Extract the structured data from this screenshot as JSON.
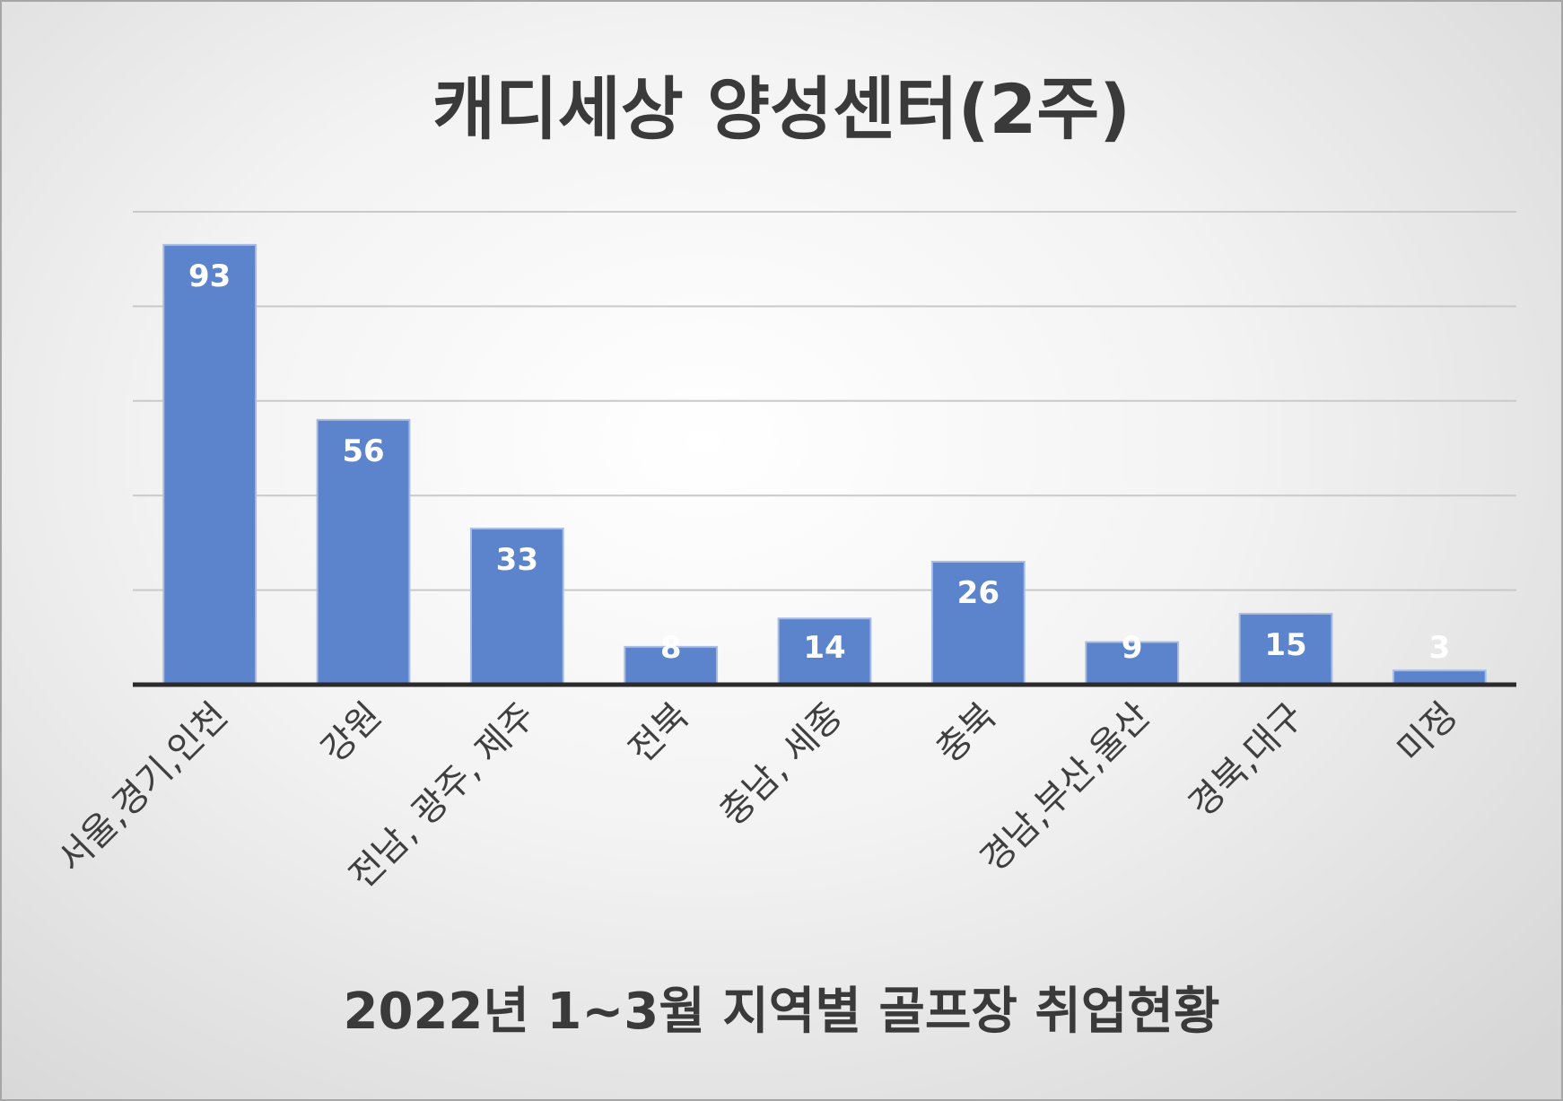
{
  "chart_data": {
    "type": "bar",
    "title": "캐디세상 양성센터(2주)",
    "xlabel": "2022년 1~3월 지역별 골프장 취업현황",
    "ylabel": "",
    "categories": [
      "서울,경기,인천",
      "강원",
      "전남, 광주, 제주",
      "전북",
      "충남, 세종",
      "충북",
      "경남,부산,울산",
      "경북,대구",
      "미정"
    ],
    "values": [
      93,
      56,
      33,
      8,
      14,
      26,
      9,
      15,
      3
    ],
    "ylim": [
      0,
      100
    ],
    "gridlines": [
      20,
      40,
      60,
      80,
      100
    ],
    "grid": true,
    "legend": "none",
    "bar_color": "#5b84cc",
    "data_labels": true
  }
}
